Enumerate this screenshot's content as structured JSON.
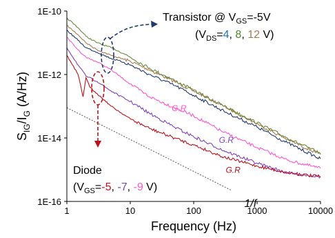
{
  "chart_data": {
    "type": "line",
    "xlabel": "Frequency (Hz)",
    "ylabel_main": "S",
    "ylabel_sub1": "IG",
    "ylabel_mid": "/I",
    "ylabel_sub2": "G",
    "ylabel_unit": " (A/Hz)",
    "x_scale": "log",
    "y_scale": "log",
    "xlim": [
      1,
      10000
    ],
    "ylim": [
      1e-16,
      1e-10
    ],
    "x_ticks": [
      {
        "value": 1,
        "label": "1"
      },
      {
        "value": 10,
        "label": "10"
      },
      {
        "value": 100,
        "label": "100"
      },
      {
        "value": 1000,
        "label": "1000"
      },
      {
        "value": 10000,
        "label": "10000"
      }
    ],
    "y_ticks": [
      {
        "value": 1e-10,
        "label": "1E-10"
      },
      {
        "value": 1e-12,
        "label": "1E-12"
      },
      {
        "value": 1e-14,
        "label": "1E-14"
      },
      {
        "value": 1e-16,
        "label": "1E-16"
      }
    ],
    "series": [
      {
        "group": "transistor",
        "vds": "12",
        "color": "#a67c52",
        "points": [
          [
            1,
            3.5e-11
          ],
          [
            1.5,
            1.8e-11
          ],
          [
            2,
            1e-11
          ],
          [
            3,
            6e-12
          ],
          [
            5,
            4e-12
          ],
          [
            8,
            3e-12
          ],
          [
            10,
            2.6e-12
          ],
          [
            20,
            1.4e-12
          ],
          [
            50,
            6e-13
          ],
          [
            100,
            3e-13
          ],
          [
            300,
            1e-13
          ],
          [
            1000,
            2.8e-14
          ],
          [
            3000,
            9e-15
          ],
          [
            10000,
            3e-15
          ]
        ]
      },
      {
        "group": "transistor",
        "vds": "8",
        "color": "#6a8a3a",
        "points": [
          [
            1,
            6e-11
          ],
          [
            1.5,
            3e-11
          ],
          [
            2,
            1.6e-11
          ],
          [
            3,
            1e-11
          ],
          [
            5,
            7e-12
          ],
          [
            8,
            4.5e-12
          ],
          [
            10,
            3.5e-12
          ],
          [
            20,
            1.6e-12
          ],
          [
            50,
            6.5e-13
          ],
          [
            100,
            3.2e-13
          ],
          [
            300,
            1e-13
          ],
          [
            1000,
            3e-14
          ],
          [
            3000,
            1e-14
          ],
          [
            10000,
            3.2e-15
          ]
        ]
      },
      {
        "group": "transistor",
        "vds": "4",
        "color": "#1f3a6e",
        "points": [
          [
            1,
            2.5e-11
          ],
          [
            1.5,
            1.2e-11
          ],
          [
            2,
            7e-12
          ],
          [
            3,
            5e-12
          ],
          [
            5,
            3.2e-12
          ],
          [
            8,
            2.4e-12
          ],
          [
            10,
            2e-12
          ],
          [
            20,
            1e-12
          ],
          [
            50,
            4.5e-13
          ],
          [
            100,
            2.2e-13
          ],
          [
            300,
            7e-14
          ],
          [
            1000,
            2.2e-14
          ],
          [
            3000,
            7e-15
          ],
          [
            10000,
            2.2e-15
          ]
        ]
      },
      {
        "group": "diode",
        "vgs": "-9",
        "color": "#ff55cc",
        "points": [
          [
            1,
            1.5e-11
          ],
          [
            1.5,
            6e-12
          ],
          [
            2,
            3.5e-12
          ],
          [
            3,
            2.5e-12
          ],
          [
            5,
            1.4e-12
          ],
          [
            10,
            5e-13
          ],
          [
            20,
            2e-13
          ],
          [
            50,
            9e-14
          ],
          [
            100,
            5e-14
          ],
          [
            300,
            1.5e-14
          ],
          [
            1000,
            5e-15
          ],
          [
            3000,
            2e-15
          ],
          [
            10000,
            1.1e-15
          ]
        ]
      },
      {
        "group": "diode",
        "vgs": "-7",
        "color": "#7f3fbf",
        "points": [
          [
            1,
            7e-12
          ],
          [
            1.5,
            2e-12
          ],
          [
            2,
            9e-13
          ],
          [
            3,
            6e-13
          ],
          [
            5,
            3e-13
          ],
          [
            10,
            1.4e-13
          ],
          [
            20,
            6e-14
          ],
          [
            50,
            2.2e-14
          ],
          [
            100,
            1.1e-14
          ],
          [
            300,
            4e-15
          ],
          [
            1000,
            1.6e-15
          ],
          [
            3000,
            8e-16
          ],
          [
            10000,
            6e-16
          ]
        ]
      },
      {
        "group": "diode",
        "vgs": "-5",
        "color": "#c0101a",
        "points": [
          [
            1,
            4e-12
          ],
          [
            1.5,
            1e-12
          ],
          [
            1.8,
            2e-13
          ],
          [
            2,
            8e-13
          ],
          [
            2.3,
            4e-13
          ],
          [
            3,
            2.5e-13
          ],
          [
            5,
            1e-13
          ],
          [
            10,
            4e-14
          ],
          [
            20,
            2e-14
          ],
          [
            50,
            1e-14
          ],
          [
            100,
            6e-15
          ],
          [
            300,
            2.5e-15
          ],
          [
            1000,
            1.3e-15
          ],
          [
            3000,
            8e-16
          ],
          [
            10000,
            6e-16
          ]
        ]
      }
    ],
    "reference_line": {
      "label": "1/f",
      "from": [
        1,
        9e-14
      ],
      "to": [
        400,
        2.2e-16
      ]
    },
    "gr_labels": [
      {
        "text": "G.R",
        "x": 45,
        "y": 7e-14,
        "color": "#ff55cc"
      },
      {
        "text": "G.R",
        "x": 250,
        "y": 7e-15,
        "color": "#7f3fbf"
      },
      {
        "text": "G.R",
        "x": 320,
        "y": 8e-16,
        "color": "#c0101a"
      }
    ],
    "annotations": {
      "transistor_prefix": "Transistor @ V",
      "transistor_sub": "GS",
      "transistor_suffix": "=-5V",
      "vds_open": "(V",
      "vds_sub": "DS",
      "vds_eq": "=",
      "vds_values": [
        {
          "text": "4",
          "color": "#1f6fb8"
        },
        {
          "text": ", ",
          "color": "#000000"
        },
        {
          "text": "8",
          "color": "#4a8a2a"
        },
        {
          "text": ", ",
          "color": "#000000"
        },
        {
          "text": "12",
          "color": "#a67c52"
        }
      ],
      "vds_close": " V)",
      "diode_label": "Diode",
      "vgs_open": "(V",
      "vgs_sub": "GS",
      "vgs_eq": "=",
      "vgs_values": [
        {
          "text": "-5",
          "color": "#d4101a"
        },
        {
          "text": ", ",
          "color": "#000000"
        },
        {
          "text": "-7",
          "color": "#7f3fbf"
        },
        {
          "text": ", ",
          "color": "#000000"
        },
        {
          "text": "-9",
          "color": "#ff55cc"
        }
      ],
      "vgs_close": "  V)"
    }
  }
}
